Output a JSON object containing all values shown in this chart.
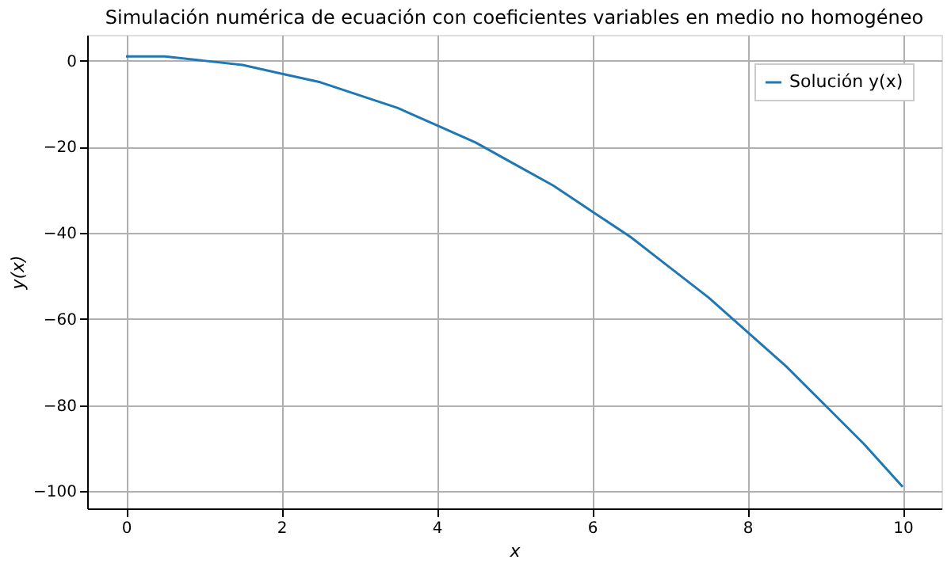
{
  "chart_data": {
    "type": "line",
    "title": "Simulación numérica de ecuación con coeficientes variables en medio no homogéneo",
    "xlabel": "x",
    "ylabel": "y(x)",
    "x": [
      0,
      0.5,
      1,
      1.5,
      2,
      2.5,
      3,
      3.5,
      4,
      4.5,
      5,
      5.5,
      6,
      6.5,
      7,
      7.5,
      8,
      8.5,
      9,
      9.5,
      10
    ],
    "series": [
      {
        "name": "Solución y(x)",
        "color": "#1f77b4",
        "values": [
          1,
          1,
          0,
          -1,
          -3,
          -5,
          -8,
          -11,
          -15,
          -19,
          -24,
          -29,
          -35,
          -41,
          -48,
          -55,
          -63,
          -71,
          -80,
          -89,
          -99
        ]
      }
    ],
    "xlim": [
      -0.5,
      10.5
    ],
    "ylim": [
      -104,
      6
    ],
    "xticks": [
      0,
      2,
      4,
      6,
      8,
      10
    ],
    "yticks": [
      -100,
      -80,
      -60,
      -40,
      -20,
      0
    ],
    "grid": true,
    "legend": "top right",
    "marker": "none",
    "line_style": "solid"
  }
}
